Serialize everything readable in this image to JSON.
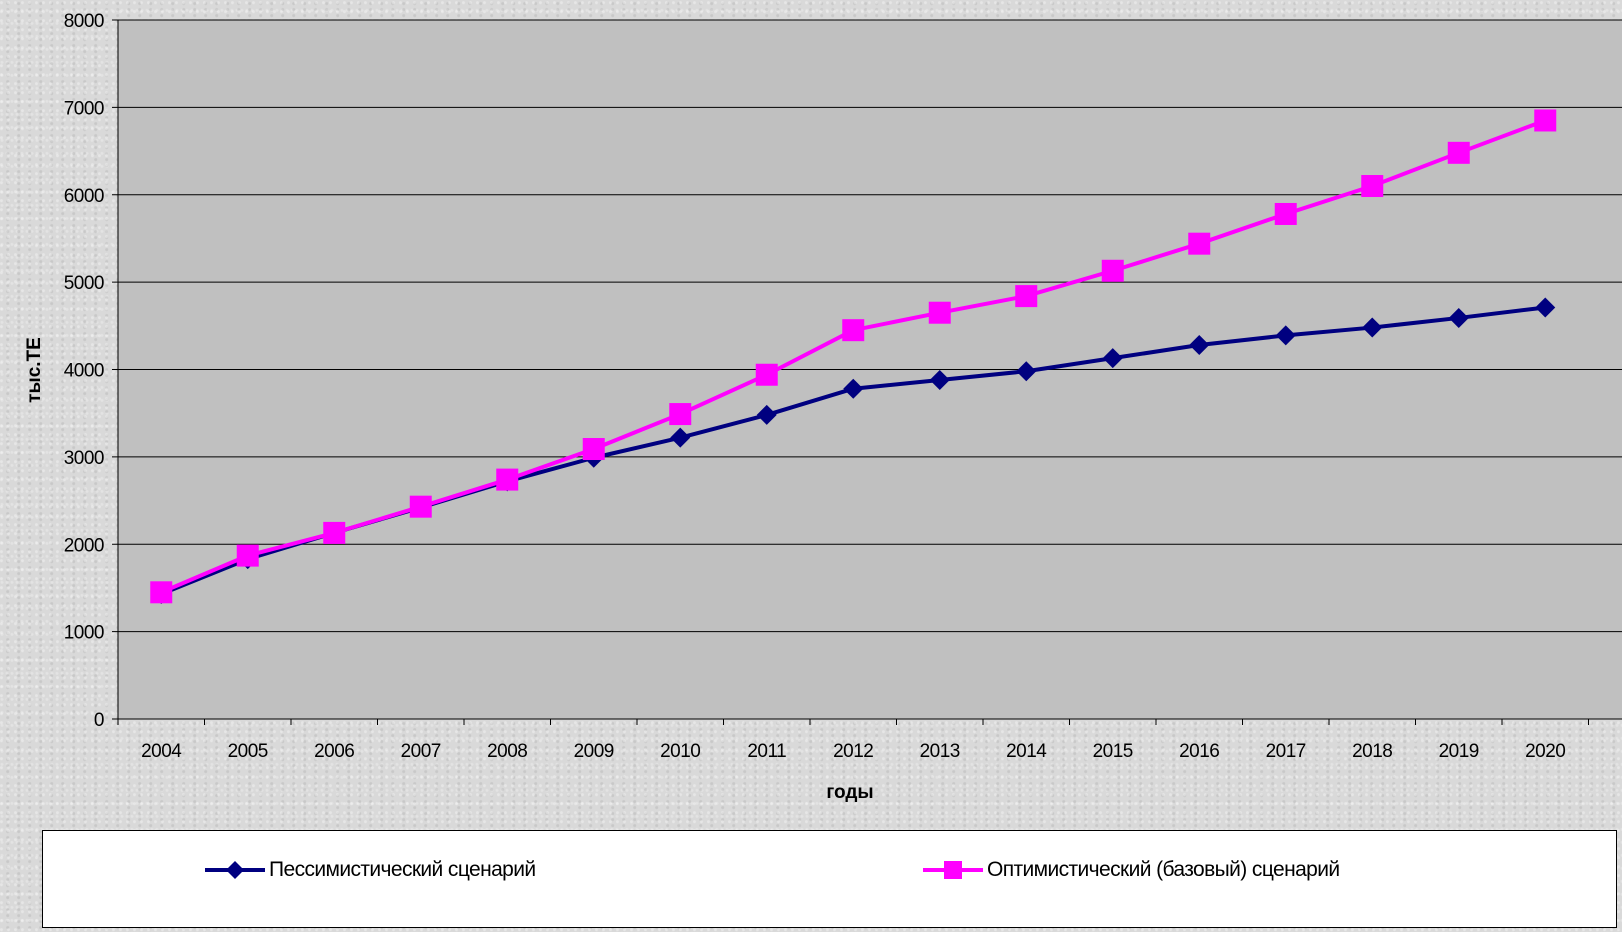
{
  "chart_data": {
    "type": "line",
    "title": "",
    "xlabel": "годы",
    "ylabel": "тыс.ТЕ",
    "ylim": [
      0,
      8000
    ],
    "yticks": [
      0,
      1000,
      2000,
      3000,
      4000,
      5000,
      6000,
      7000,
      8000
    ],
    "grid": true,
    "legend_position": "bottom",
    "categories": [
      "2004",
      "2005",
      "2006",
      "2007",
      "2008",
      "2009",
      "2010",
      "2011",
      "2012",
      "2013",
      "2014",
      "2015",
      "2016",
      "2017",
      "2018",
      "2019",
      "2020"
    ],
    "series": [
      {
        "name": "Пессимистический сценарий",
        "color": "#000080",
        "marker": "diamond",
        "values": [
          1430,
          1830,
          2130,
          2420,
          2720,
          2990,
          3220,
          3480,
          3780,
          3880,
          3980,
          4130,
          4280,
          4390,
          4480,
          4590,
          4710
        ]
      },
      {
        "name": "Оптимистический (базовый) сценарий",
        "color": "#ff00ff",
        "marker": "square",
        "values": [
          1450,
          1870,
          2130,
          2430,
          2740,
          3090,
          3490,
          3940,
          4450,
          4650,
          4840,
          5130,
          5440,
          5780,
          6100,
          6480,
          6850
        ]
      }
    ],
    "plot_background": "#c0c0c0"
  }
}
